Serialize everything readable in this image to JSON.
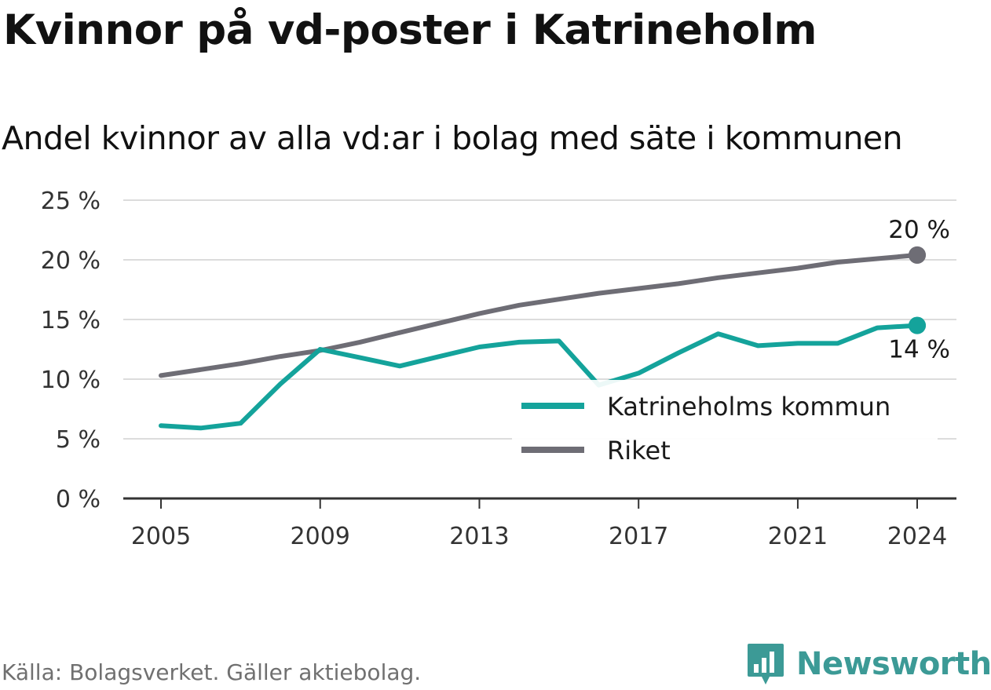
{
  "title": "Kvinnor på vd-poster i Katrineholm",
  "subtitle": "Andel kvinnor av alla vd:ar i bolag med säte i kommunen",
  "source": "Källa: Bolagsverket. Gäller aktiebolag.",
  "brand": "Newsworthy",
  "colors": {
    "kommun": "#14a39b",
    "riket": "#6e6d75",
    "grid": "#dcdcdc",
    "axis": "#333333",
    "brand": "#3c9a96"
  },
  "chart_data": {
    "type": "line",
    "x": [
      2005,
      2006,
      2007,
      2008,
      2009,
      2010,
      2011,
      2012,
      2013,
      2014,
      2015,
      2016,
      2017,
      2018,
      2019,
      2020,
      2021,
      2022,
      2023,
      2024
    ],
    "x_ticks": [
      2005,
      2009,
      2013,
      2017,
      2021,
      2024
    ],
    "x_tick_labels": [
      "2005",
      "2009",
      "2013",
      "2017",
      "2021",
      "2024"
    ],
    "y_ticks": [
      0,
      5,
      10,
      15,
      20,
      25
    ],
    "y_tick_labels": [
      "0 %",
      "5 %",
      "10 %",
      "15 %",
      "20 %",
      "25 %"
    ],
    "ylim": [
      0,
      25
    ],
    "xlim": [
      2005,
      2024
    ],
    "grid": true,
    "legend_position": "bottom-right",
    "series": [
      {
        "name": "Katrineholms kommun",
        "key": "kommun",
        "values": [
          6.1,
          5.9,
          6.3,
          9.6,
          12.5,
          11.8,
          11.1,
          11.9,
          12.7,
          13.1,
          13.2,
          9.5,
          10.5,
          12.2,
          13.8,
          12.8,
          13.0,
          13.0,
          14.3,
          14.5
        ],
        "end_label": "14 %"
      },
      {
        "name": "Riket",
        "key": "riket",
        "values": [
          10.3,
          10.8,
          11.3,
          11.9,
          12.4,
          13.1,
          13.9,
          14.7,
          15.5,
          16.2,
          16.7,
          17.2,
          17.6,
          18.0,
          18.5,
          18.9,
          19.3,
          19.8,
          20.1,
          20.4
        ],
        "end_label": "20 %"
      }
    ]
  }
}
